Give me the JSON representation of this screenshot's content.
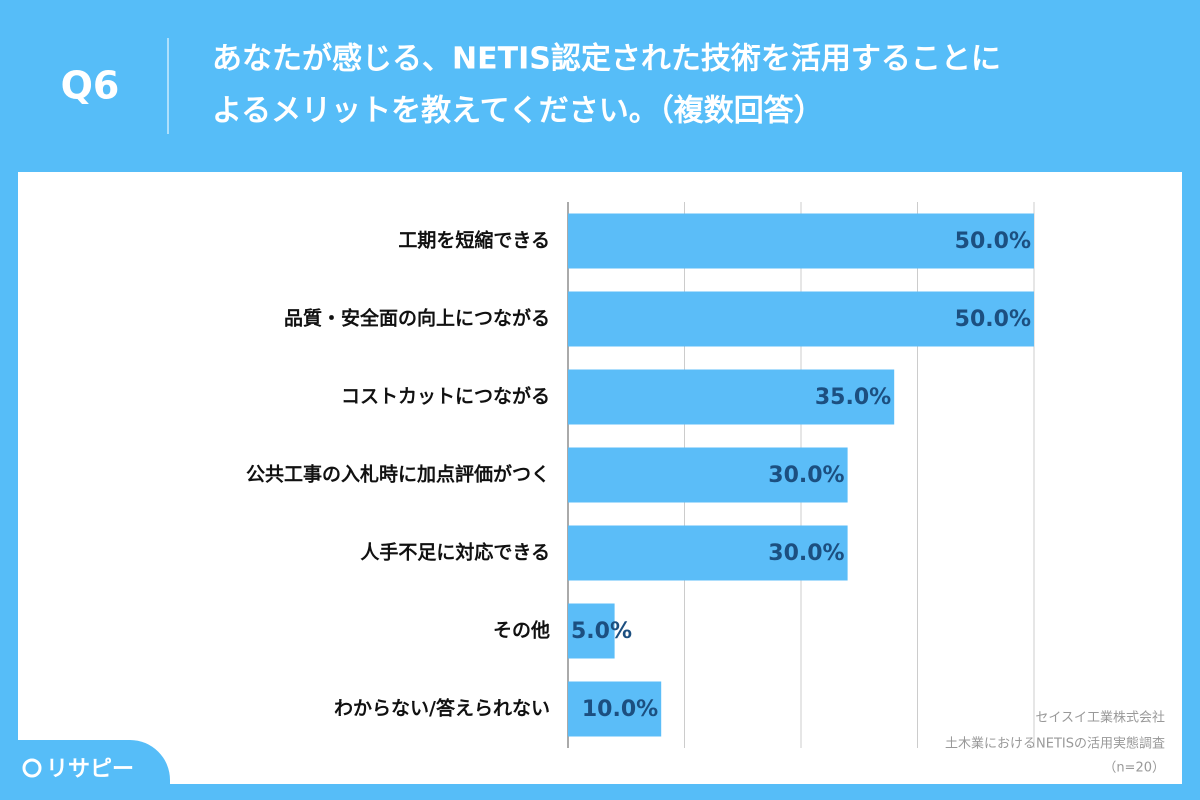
{
  "header": {
    "question": "Q6",
    "title_lines": [
      "あなたが感じる、NETIS認定された技術を活用することに",
      "よるメリットを教えてください。（複数回答）"
    ]
  },
  "chart_data": {
    "type": "hbar",
    "categories": [
      "工期を短縮できる",
      "品質・安全面の向上につながる",
      "コストカットにつながる",
      "公共工事の入札時に加点評価がつく",
      "人手不足に対応できる",
      "その他",
      "わからない/答えられない"
    ],
    "values": [
      50,
      50,
      35,
      30,
      30,
      5,
      10
    ],
    "value_labels": [
      "50.0%",
      "50.0%",
      "35.0%",
      "30.0%",
      "30.0%",
      "5.0%",
      "10.0%"
    ],
    "color": "#5bbdf8",
    "xlim": [
      0,
      50
    ],
    "xticks": [
      0,
      12.5,
      25,
      37.5,
      50
    ],
    "grid": true
  },
  "source": [
    "セイスイ工業株式会社",
    "土木業におけるNETISの活用実態調査",
    "（n=20）"
  ],
  "logo": "リサピー"
}
